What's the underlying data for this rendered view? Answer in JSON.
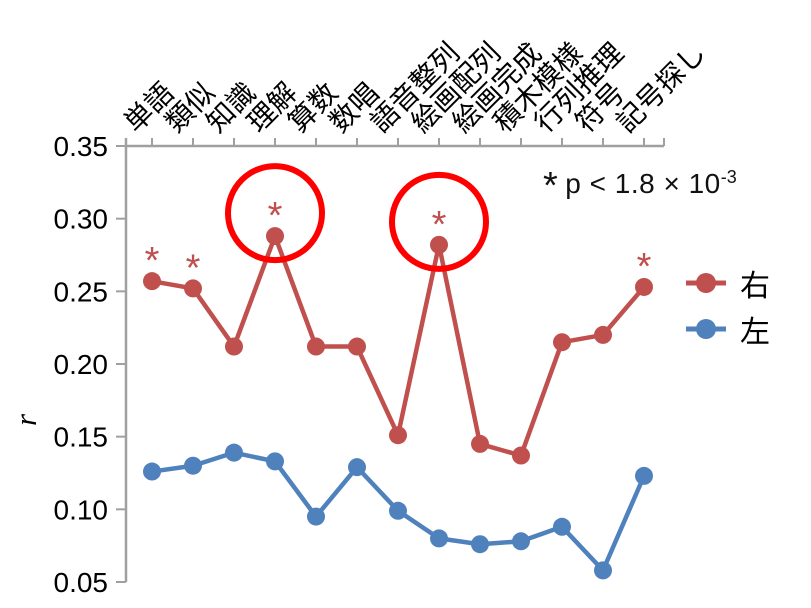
{
  "chart_data": {
    "type": "line",
    "title": "",
    "ylabel": "r",
    "ylim": [
      0.05,
      0.35
    ],
    "yticks": [
      0.05,
      0.1,
      0.15,
      0.2,
      0.25,
      0.3,
      0.35
    ],
    "ytick_labels": [
      "0.05",
      "0.10",
      "0.15",
      "0.20",
      "0.25",
      "0.30",
      "0.35"
    ],
    "categories": [
      "単語",
      "類似",
      "知識",
      "理解",
      "算数",
      "数唱",
      "語音整列",
      "絵画配列",
      "絵画完成",
      "積木模様",
      "行列推理",
      "符号",
      "記号探し"
    ],
    "series": [
      {
        "key": "right",
        "name": "右",
        "color": "#C0504D",
        "values": [
          0.257,
          0.252,
          0.212,
          0.288,
          0.212,
          0.212,
          0.151,
          0.282,
          0.145,
          0.137,
          0.215,
          0.22,
          0.253
        ],
        "starred_indices": [
          0,
          1,
          3,
          7,
          12
        ],
        "circled_indices": [
          3,
          7
        ]
      },
      {
        "key": "left",
        "name": "左",
        "color": "#4F81BD",
        "values": [
          0.126,
          0.13,
          0.139,
          0.133,
          0.095,
          0.129,
          0.099,
          0.08,
          0.076,
          0.078,
          0.088,
          0.058,
          0.123
        ],
        "starred_indices": [],
        "circled_indices": []
      }
    ],
    "star_symbol": "*",
    "annotation": {
      "symbol": "*",
      "text": "p < 1.8 × 10",
      "exponent": "-3"
    },
    "highlight_circle_color": "#FF0000",
    "axis_color": "#A0A0A0",
    "legend_position": "right",
    "grid": false
  }
}
